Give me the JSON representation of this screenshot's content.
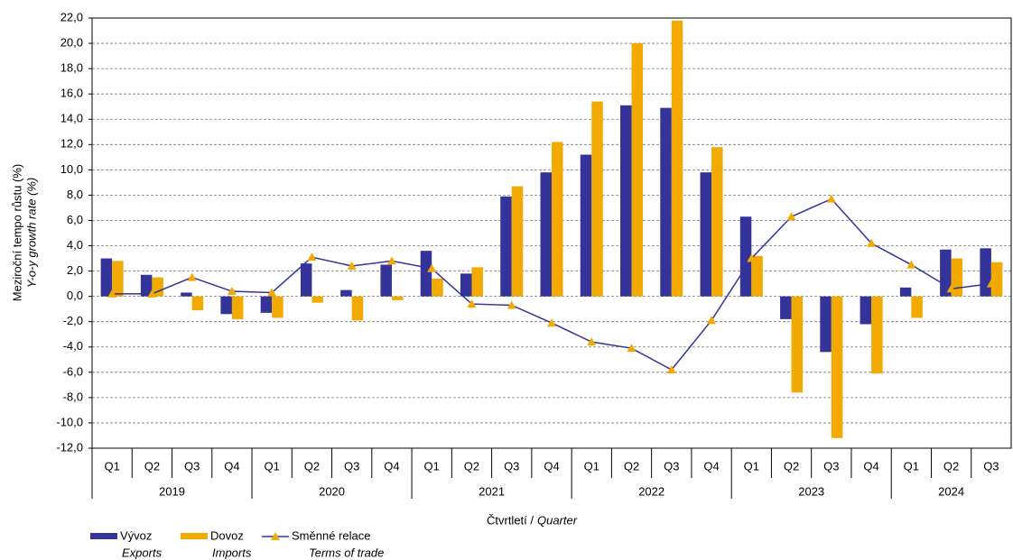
{
  "chart_data": {
    "type": "bar",
    "ylabel": [
      "Meziroční tempo růstu (%)",
      "Y-o-y growth rate (%)"
    ],
    "xlabel": [
      "Čtvrtletí /",
      "Quarter"
    ],
    "groups": [
      {
        "name": "2019",
        "categories": [
          "Q1",
          "Q2",
          "Q3",
          "Q4"
        ]
      },
      {
        "name": "2020",
        "categories": [
          "Q1",
          "Q2",
          "Q3",
          "Q4"
        ]
      },
      {
        "name": "2021",
        "categories": [
          "Q1",
          "Q2",
          "Q3",
          "Q4"
        ]
      },
      {
        "name": "2022",
        "categories": [
          "Q1",
          "Q2",
          "Q3",
          "Q4"
        ]
      },
      {
        "name": "2023",
        "categories": [
          "Q1",
          "Q2",
          "Q3",
          "Q4"
        ]
      },
      {
        "name": "2024",
        "categories": [
          "Q1",
          "Q2",
          "Q3"
        ]
      }
    ],
    "series": [
      {
        "name": "Vývoz",
        "name_en": "Exports",
        "type": "bar",
        "color": "#333399",
        "values": [
          3.0,
          1.7,
          0.3,
          -1.4,
          -1.3,
          2.6,
          0.5,
          2.5,
          3.6,
          1.8,
          7.9,
          9.8,
          11.2,
          15.1,
          14.9,
          9.8,
          6.3,
          -1.8,
          -4.4,
          -2.2,
          0.7,
          3.7,
          3.8
        ]
      },
      {
        "name": "Dovoz",
        "name_en": "Imports",
        "type": "bar",
        "color": "#f2a900",
        "values": [
          2.8,
          1.5,
          -1.1,
          -1.8,
          -1.7,
          -0.5,
          -1.9,
          -0.3,
          1.4,
          2.3,
          8.7,
          12.2,
          15.4,
          20.0,
          21.8,
          11.8,
          3.2,
          -7.6,
          -11.2,
          -6.1,
          -1.7,
          3.0,
          2.7
        ]
      },
      {
        "name": "Směnné relace",
        "name_en": "Terms of trade",
        "type": "line",
        "color": "#333399",
        "marker_color": "#f2a900",
        "values": [
          0.2,
          0.2,
          1.5,
          0.4,
          0.3,
          3.1,
          2.4,
          2.8,
          2.2,
          -0.6,
          -0.7,
          -2.1,
          -3.6,
          -4.1,
          -5.8,
          -1.9,
          3.0,
          6.3,
          7.7,
          4.2,
          2.5,
          0.6,
          1.0
        ]
      }
    ],
    "ylim": [
      -12,
      22
    ],
    "yticks": [
      {
        "value": -12,
        "label": "-12,0"
      },
      {
        "value": -10,
        "label": "-10,0"
      },
      {
        "value": -8,
        "label": "-8,0"
      },
      {
        "value": -6,
        "label": "-6,0"
      },
      {
        "value": -4,
        "label": "-4,0"
      },
      {
        "value": -2,
        "label": "-2,0"
      },
      {
        "value": 0,
        "label": "0,0"
      },
      {
        "value": 2,
        "label": "2,0"
      },
      {
        "value": 4,
        "label": "4,0"
      },
      {
        "value": 6,
        "label": "6,0"
      },
      {
        "value": 8,
        "label": "8,0"
      },
      {
        "value": 10,
        "label": "10,0"
      },
      {
        "value": 12,
        "label": "12,0"
      },
      {
        "value": 14,
        "label": "14,0"
      },
      {
        "value": 16,
        "label": "16,0"
      },
      {
        "value": 18,
        "label": "18,0"
      },
      {
        "value": 20,
        "label": "20,0"
      },
      {
        "value": 22,
        "label": "22,0"
      }
    ],
    "grid": true
  }
}
